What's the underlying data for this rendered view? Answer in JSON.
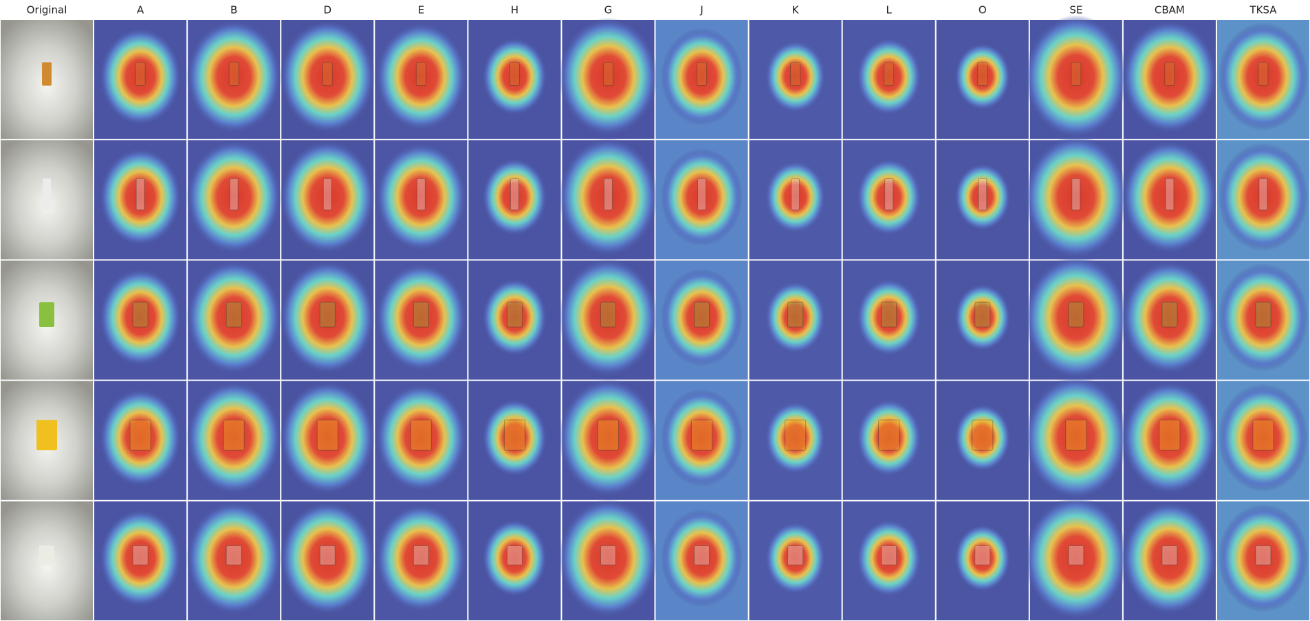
{
  "columns": [
    "Original",
    "A",
    "B",
    "D",
    "E",
    "H",
    "G",
    "J",
    "K",
    "L",
    "O",
    "SE",
    "CBAM",
    "TKSA"
  ]
}
